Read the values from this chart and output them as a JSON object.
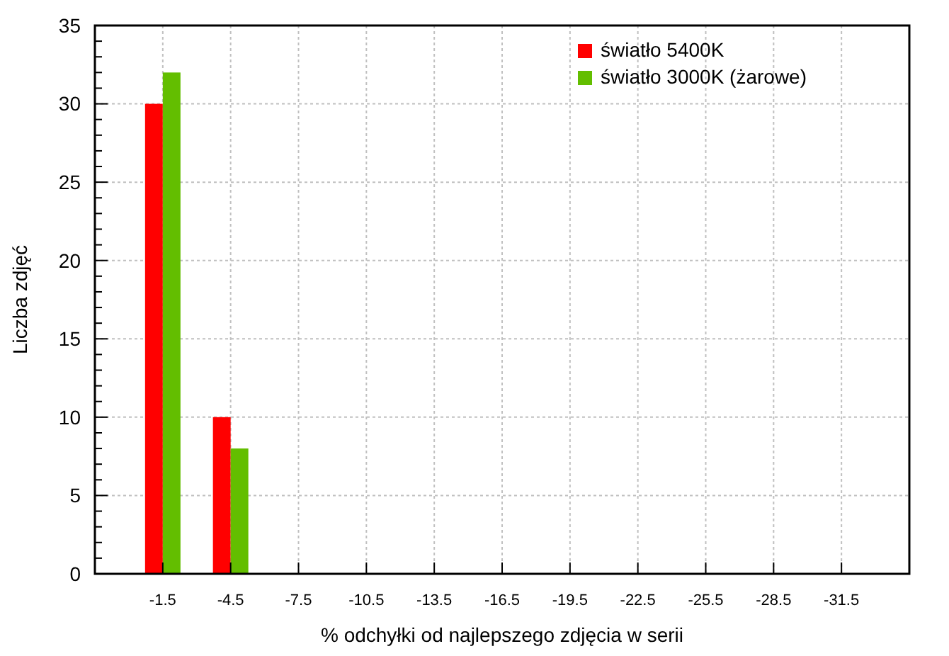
{
  "chart_data": {
    "type": "bar",
    "xlabel": "% odchyłki od najlepszego zdjęcia w serii",
    "ylabel": "Liczba zdjęć",
    "categories": [
      "-1.5",
      "-4.5",
      "-7.5",
      "-10.5",
      "-13.5",
      "-16.5",
      "-19.5",
      "-22.5",
      "-25.5",
      "-28.5",
      "-31.5"
    ],
    "series": [
      {
        "name": "światło 5400K",
        "color": "#ff0000",
        "values": [
          30,
          10,
          0,
          0,
          0,
          0,
          0,
          0,
          0,
          0,
          0
        ]
      },
      {
        "name": "światło 3000K (żarowe)",
        "color": "#63be00",
        "values": [
          32,
          8,
          0,
          0,
          0,
          0,
          0,
          0,
          0,
          0,
          0
        ]
      }
    ],
    "ylim": [
      0,
      35
    ],
    "yticks": [
      0,
      {
        "value": 1,
        "label": null
      },
      {
        "value": 2,
        "label": null
      },
      {
        "value": 3,
        "label": null
      },
      {
        "value": 4,
        "label": null
      },
      5,
      {
        "value": 6,
        "label": null
      },
      {
        "value": 7,
        "label": null
      },
      {
        "value": 8,
        "label": null
      },
      {
        "value": 9,
        "label": null
      },
      10,
      {
        "value": 11,
        "label": null
      },
      {
        "value": 12,
        "label": null
      },
      {
        "value": 13,
        "label": null
      },
      {
        "value": 14,
        "label": null
      },
      15,
      {
        "value": 16,
        "label": null
      },
      {
        "value": 17,
        "label": null
      },
      {
        "value": 18,
        "label": null
      },
      {
        "value": 19,
        "label": null
      },
      20,
      {
        "value": 21,
        "label": null
      },
      {
        "value": 22,
        "label": null
      },
      {
        "value": 23,
        "label": null
      },
      {
        "value": 24,
        "label": null
      },
      25,
      {
        "value": 26,
        "label": null
      },
      {
        "value": 27,
        "label": null
      },
      {
        "value": 28,
        "label": null
      },
      {
        "value": 29,
        "label": null
      },
      30,
      {
        "value": 31,
        "label": null
      },
      {
        "value": 32,
        "label": null
      },
      {
        "value": 33,
        "label": null
      },
      {
        "value": 34,
        "label": null
      },
      35
    ],
    "grid": true,
    "legend": "top right"
  }
}
